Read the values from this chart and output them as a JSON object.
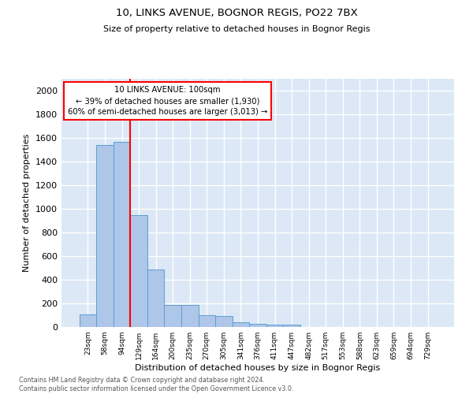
{
  "title1": "10, LINKS AVENUE, BOGNOR REGIS, PO22 7BX",
  "title2": "Size of property relative to detached houses in Bognor Regis",
  "xlabel": "Distribution of detached houses by size in Bognor Regis",
  "ylabel": "Number of detached properties",
  "categories": [
    "23sqm",
    "58sqm",
    "94sqm",
    "129sqm",
    "164sqm",
    "200sqm",
    "235sqm",
    "270sqm",
    "305sqm",
    "341sqm",
    "376sqm",
    "411sqm",
    "447sqm",
    "482sqm",
    "517sqm",
    "553sqm",
    "588sqm",
    "623sqm",
    "659sqm",
    "694sqm",
    "729sqm"
  ],
  "values": [
    110,
    1540,
    1570,
    950,
    490,
    185,
    185,
    100,
    95,
    40,
    28,
    20,
    18,
    0,
    0,
    0,
    0,
    0,
    0,
    0,
    0
  ],
  "bar_color": "#aec6e8",
  "bar_edge_color": "#5a9fd4",
  "background_color": "#dce8f5",
  "grid_color": "#ffffff",
  "vline_color": "red",
  "annotation_line1": "10 LINKS AVENUE: 100sqm",
  "annotation_line2": "← 39% of detached houses are smaller (1,930)",
  "annotation_line3": "60% of semi-detached houses are larger (3,013) →",
  "annotation_box_color": "white",
  "annotation_box_edge": "red",
  "footer": "Contains HM Land Registry data © Crown copyright and database right 2024.\nContains public sector information licensed under the Open Government Licence v3.0.",
  "ylim": [
    0,
    2100
  ],
  "yticks": [
    0,
    200,
    400,
    600,
    800,
    1000,
    1200,
    1400,
    1600,
    1800,
    2000
  ],
  "figsize": [
    6.0,
    5.0
  ],
  "dpi": 100
}
